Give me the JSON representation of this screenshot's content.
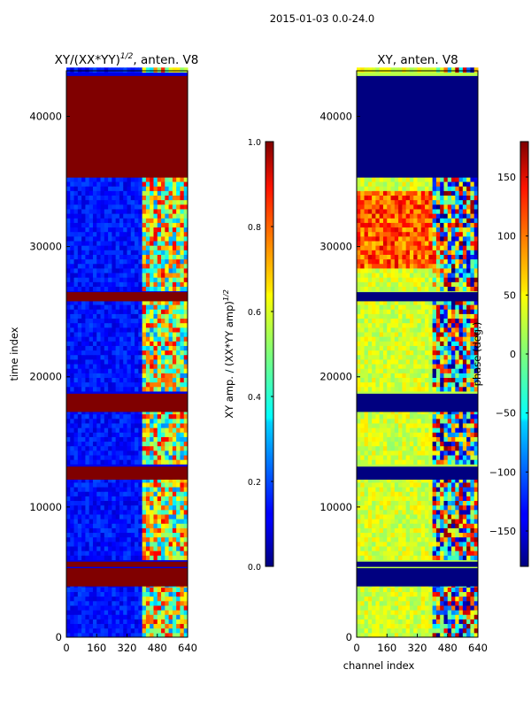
{
  "suptitle": "2015-01-03 0.0-24.0",
  "colors": {
    "saturated_red": "#800000",
    "deep_blue": "#00008b",
    "cyan": "#00e5ff",
    "yellow": "#ffe600",
    "light_green": "#a0ff60"
  },
  "chart_data": [
    {
      "type": "heatmap",
      "title": "XY/(XX*YY)",
      "title_exponent": "1/2",
      "title_suffix": ", anten. V8",
      "xlabel": "",
      "ylabel": "time index",
      "xlim": [
        0,
        640
      ],
      "ylim": [
        0,
        43500
      ],
      "x_ticks": [
        "0",
        "160",
        "320",
        "480",
        "640"
      ],
      "y_ticks": [
        "0",
        "10000",
        "20000",
        "30000",
        "40000"
      ],
      "x_tick_values": [
        0,
        160,
        320,
        480,
        640
      ],
      "y_tick_values": [
        0,
        10000,
        20000,
        30000,
        40000
      ],
      "colorbar": {
        "label": "XY amp. / (XX*YY amp)",
        "label_exponent": "1/2",
        "range": [
          0.0,
          1.0
        ],
        "ticks": [
          "0.0",
          "0.2",
          "0.4",
          "0.6",
          "0.8",
          "1.0"
        ],
        "tick_values": [
          0.0,
          0.2,
          0.4,
          0.6,
          0.8,
          1.0
        ]
      },
      "flagged_time_ranges": [
        [
          3900,
          5300
        ],
        [
          5400,
          5800
        ],
        [
          12100,
          13100
        ],
        [
          17300,
          18700
        ],
        [
          25800,
          26500
        ],
        [
          35300,
          43100
        ]
      ],
      "flagged_value": 1.0,
      "background_value": 0.1,
      "active_channel_range": [
        400,
        640
      ]
    },
    {
      "type": "heatmap",
      "title": "XY, anten. V8",
      "xlabel": "channel index",
      "ylabel": "",
      "xlim": [
        0,
        640
      ],
      "ylim": [
        0,
        43500
      ],
      "x_ticks": [
        "0",
        "160",
        "320",
        "480",
        "640"
      ],
      "y_ticks": [
        "0",
        "10000",
        "20000",
        "30000",
        "40000"
      ],
      "x_tick_values": [
        0,
        160,
        320,
        480,
        640
      ],
      "y_tick_values": [
        0,
        10000,
        20000,
        30000,
        40000
      ],
      "colorbar": {
        "label": "phase (deg.)",
        "range": [
          -180,
          180
        ],
        "ticks": [
          "150",
          "100",
          "50",
          "0",
          "−50",
          "−100",
          "−150"
        ],
        "tick_values": [
          150,
          100,
          50,
          0,
          -50,
          -100,
          -150
        ]
      },
      "flagged_time_ranges": [
        [
          3900,
          5300
        ],
        [
          5400,
          5800
        ],
        [
          12100,
          13100
        ],
        [
          17300,
          18700
        ],
        [
          25800,
          26500
        ],
        [
          35300,
          43100
        ]
      ],
      "flagged_value": -180,
      "background_value": 20,
      "active_channel_range": [
        400,
        640
      ]
    }
  ]
}
